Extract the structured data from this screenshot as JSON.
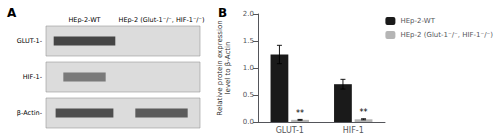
{
  "chart_data": [
    {
      "type": "blot",
      "title": "A",
      "categories": [
        "GLUT-1-",
        "HIF-1-",
        "β-Actin-"
      ],
      "annotations": [
        "HEp-2-WT",
        "HEp-2 (Glut-1⁻/⁻, HIF-1⁻/⁻)"
      ],
      "color": "#2a2a2a"
    },
    {
      "type": "bar",
      "title": "B",
      "categories": [
        "GLUT-1",
        "HIF-1"
      ],
      "series": [
        {
          "name": "HEp-2-WT",
          "color": "#1a1a1a",
          "values": [
            1.25,
            0.7
          ],
          "errors": [
            0.17,
            0.09
          ]
        },
        {
          "name": "HEp-2 (Glut-1⁻/⁻, HIF-1⁻/⁻)",
          "color": "#b5b5b5",
          "values": [
            0.04,
            0.05
          ],
          "errors": [
            0.008,
            0.01
          ],
          "annotations": [
            "**",
            "**"
          ]
        }
      ],
      "ylabel": "Relative protein expression\nlevel to β-Actin",
      "ylim": [
        0,
        2
      ],
      "yticks": [
        {
          "value": 0,
          "label": "0.0"
        },
        0.5,
        {
          "value": 1,
          "label": "1.0"
        },
        1.5,
        {
          "value": 2,
          "label": "2.0"
        }
      ],
      "grid": false,
      "legend": "right"
    }
  ]
}
